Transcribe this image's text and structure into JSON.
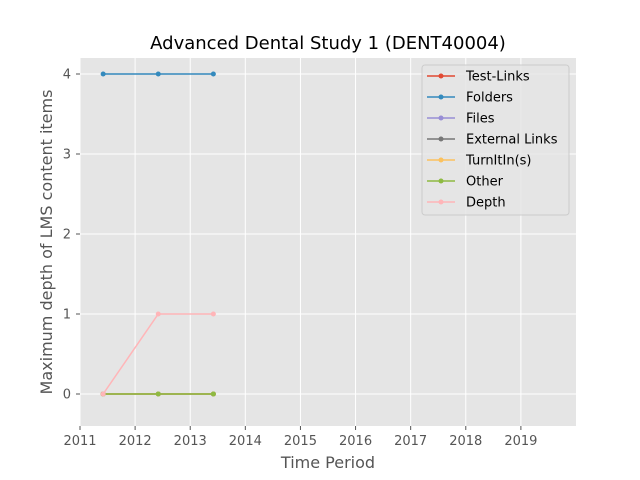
{
  "chart_data": {
    "type": "line",
    "title": "Advanced Dental Study 1 (DENT40004)",
    "xlabel": "Time Period",
    "ylabel": "Maximum depth of LMS content items",
    "xlim": [
      2011,
      2020
    ],
    "ylim": [
      -0.4,
      4.2
    ],
    "xticks": [
      2011,
      2012,
      2013,
      2014,
      2015,
      2016,
      2017,
      2018,
      2019
    ],
    "yticks": [
      0,
      1,
      2,
      3,
      4
    ],
    "grid": true,
    "legend_position": "top-right",
    "x": [
      2011.42,
      2012.42,
      2013.42
    ],
    "series": [
      {
        "name": "Test-Links",
        "color": "#E24A33",
        "values": [
          0,
          0,
          0
        ]
      },
      {
        "name": "Folders",
        "color": "#348ABD",
        "values": [
          4,
          4,
          4
        ]
      },
      {
        "name": "Files",
        "color": "#988ED5",
        "values": [
          0,
          0,
          0
        ]
      },
      {
        "name": "External Links",
        "color": "#777777",
        "values": [
          0,
          0,
          0
        ]
      },
      {
        "name": "TurnItIn(s)",
        "color": "#FBC15E",
        "values": [
          0,
          0,
          0
        ]
      },
      {
        "name": "Other",
        "color": "#8EBA42",
        "values": [
          0,
          0,
          0
        ]
      },
      {
        "name": "Depth",
        "color": "#FFB5B8",
        "values": [
          0,
          1,
          1
        ]
      }
    ]
  }
}
